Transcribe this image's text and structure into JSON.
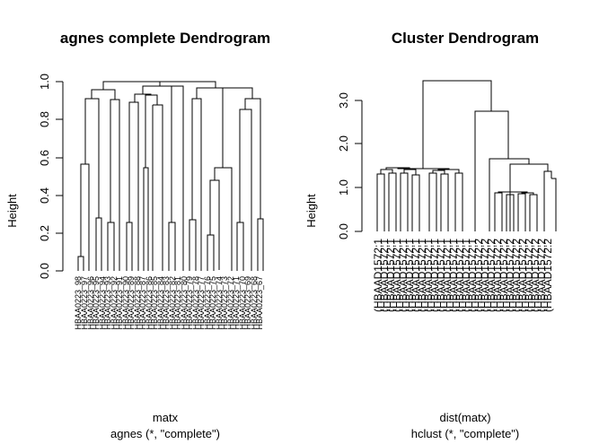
{
  "left_panel": {
    "title": "agnes complete Dendrogram",
    "ylabel": "Height",
    "yticks": [
      "0.0",
      "0.2",
      "0.4",
      "0.6",
      "0.8",
      "1.0"
    ],
    "xlabel": "matx",
    "sub": "agnes (*, \"complete\")",
    "leaf_labels": [
      "HBAA0223_98",
      "HBAA0223_97",
      "HBAA0223_96",
      "HBAA0223_95",
      "HBAA0223_94",
      "HBAA0223_93",
      "HBAA0223_92",
      "HBAA0223_91",
      "HBAA0223_90",
      "HBAA0223_89",
      "HBAA0223_88",
      "HBAA0223_87",
      "HBAA0223_86",
      "HBAA0223_85",
      "HBAA0223_84",
      "HBAA0223_83",
      "HBAA0223_82",
      "HBAA0223_81",
      "HBAA0223_80",
      "HBAA0223_79",
      "HBAA0223_78",
      "HBAA0223_77",
      "HBAA0223_76",
      "HBAA0223_75",
      "HBAA0223_74",
      "HBAA0223_73",
      "HBAA0223_72",
      "HBAA0223_71",
      "HBAA0223_70",
      "HBAA0223_69",
      "HBAA0223_68",
      "HBAA0223_67"
    ]
  },
  "right_panel": {
    "title": "Cluster Dendrogram",
    "ylabel": "Height",
    "yticks": [
      "0.0",
      "1.0",
      "2.0",
      "3.0"
    ],
    "xlabel": "dist(matx)",
    "sub": "hclust (*, \"complete\")",
    "leaf_labels": [
      "(HBAAD1572:1",
      "(HBAAD1572:1",
      "(HBAAD1572:1",
      "(HBAAD1572:1",
      "(HBAAD1572:1",
      "(HBAAD1572:1",
      "(HBAAD1572:1",
      "(HBAAD1572:1",
      "(HBAAD1572:1",
      "(HBAAD1572:1",
      "(HBAAD1572:1",
      "(HBAAD1572:1",
      "(HBAAD1572:1",
      "(HBAAD1572:1",
      "(HBAAD1572:1",
      "(HBAAD1572:1",
      "(HBAAD1572:2",
      "(HBAAD1572:2",
      "(HBAAD1572:2",
      "(HBAAD1572:2",
      "(HBAAD1572:2",
      "(HBAAD1572:2",
      "(HBAAD1572:2",
      "(HBAAD1572:2",
      "(HBAAD1572:2",
      "(HBAAD1572:2",
      "(HBAAD1572:2",
      "(HBAAD1572:2"
    ]
  },
  "chart_data": [
    {
      "type": "dendrogram",
      "title": "agnes complete Dendrogram",
      "ylabel": "Height",
      "xlabel": "matx",
      "ylim": [
        0,
        1.0
      ],
      "leaf_count": 32,
      "merge_heights": [
        0.07,
        0.56,
        0.9,
        0.27,
        0.26,
        0.9,
        0.26,
        0.88,
        0.92,
        0.54,
        0.91,
        0.89,
        0.25,
        0.95,
        0.27,
        0.9,
        0.19,
        0.47,
        0.54,
        0.26,
        0.85,
        0.27,
        0.9,
        0.97,
        0.99
      ]
    },
    {
      "type": "dendrogram",
      "title": "Cluster Dendrogram",
      "ylabel": "Height",
      "xlabel": "dist(matx)",
      "ylim": [
        0,
        3.5
      ],
      "leaf_count": 28,
      "merge_heights": [
        1.3,
        1.35,
        1.3,
        1.35,
        1.25,
        1.38,
        1.3,
        1.28,
        1.35,
        1.3,
        0.3,
        0.8,
        0.85,
        0.8,
        0.85,
        0.85,
        1.5,
        1.3,
        1.2,
        1.6,
        2.7,
        3.4
      ]
    }
  ]
}
